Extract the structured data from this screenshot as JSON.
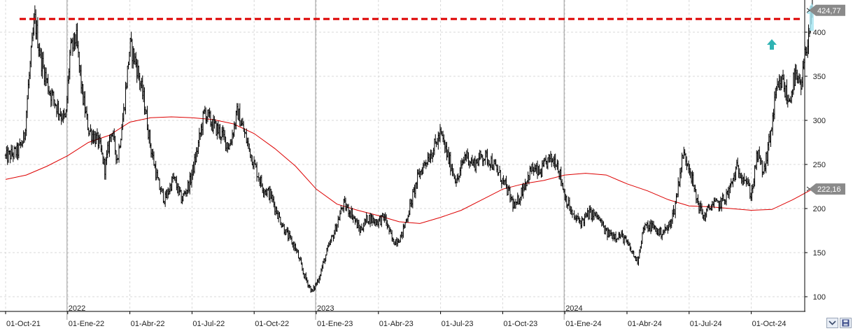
{
  "chart_data": {
    "type": "ohlc",
    "x_tick_labels": [
      "01-Oct-21",
      "01-Ene-22",
      "01-Abr-22",
      "01-Jul-22",
      "01-Oct-22",
      "01-Ene-23",
      "01-Abr-23",
      "01-Jul-23",
      "01-Oct-23",
      "01-Ene-24",
      "01-Abr-24",
      "01-Jul-24",
      "01-Oct-24"
    ],
    "x_tick_months": [
      0,
      3,
      6,
      9,
      12,
      15,
      18,
      21,
      24,
      27,
      30,
      33,
      36
    ],
    "year_labels": [
      {
        "text": "2022",
        "month": 3
      },
      {
        "text": "2023",
        "month": 15
      },
      {
        "text": "2024",
        "month": 27
      }
    ],
    "y_ticks": [
      100,
      150,
      200,
      250,
      300,
      350,
      400
    ],
    "ylim": [
      90,
      434
    ],
    "xlim_months": [
      0,
      39.1
    ],
    "price_path": [
      [
        0,
        258
      ],
      [
        0.6,
        265
      ],
      [
        0.9,
        280
      ],
      [
        1.1,
        340
      ],
      [
        1.4,
        415
      ],
      [
        1.7,
        370
      ],
      [
        2.1,
        335
      ],
      [
        2.6,
        310
      ],
      [
        2.9,
        300
      ],
      [
        3.1,
        375
      ],
      [
        3.4,
        395
      ],
      [
        3.7,
        330
      ],
      [
        4.0,
        290
      ],
      [
        4.5,
        275
      ],
      [
        4.8,
        245
      ],
      [
        5.1,
        290
      ],
      [
        5.4,
        255
      ],
      [
        5.7,
        310
      ],
      [
        6.0,
        385
      ],
      [
        6.3,
        365
      ],
      [
        6.7,
        320
      ],
      [
        7.0,
        270
      ],
      [
        7.4,
        225
      ],
      [
        7.7,
        210
      ],
      [
        8.1,
        235
      ],
      [
        8.5,
        210
      ],
      [
        8.9,
        230
      ],
      [
        9.2,
        260
      ],
      [
        9.6,
        310
      ],
      [
        10.0,
        295
      ],
      [
        10.4,
        285
      ],
      [
        10.8,
        270
      ],
      [
        11.2,
        310
      ],
      [
        11.6,
        280
      ],
      [
        12.0,
        250
      ],
      [
        12.4,
        225
      ],
      [
        12.8,
        215
      ],
      [
        13.2,
        190
      ],
      [
        13.6,
        170
      ],
      [
        14.0,
        155
      ],
      [
        14.4,
        125
      ],
      [
        14.8,
        105
      ],
      [
        15.1,
        120
      ],
      [
        15.5,
        150
      ],
      [
        15.9,
        175
      ],
      [
        16.3,
        205
      ],
      [
        16.7,
        195
      ],
      [
        17.1,
        175
      ],
      [
        17.5,
        190
      ],
      [
        17.9,
        185
      ],
      [
        18.3,
        190
      ],
      [
        18.7,
        162
      ],
      [
        19.1,
        168
      ],
      [
        19.5,
        200
      ],
      [
        19.9,
        235
      ],
      [
        20.3,
        255
      ],
      [
        20.6,
        265
      ],
      [
        21.0,
        285
      ],
      [
        21.4,
        255
      ],
      [
        21.8,
        230
      ],
      [
        22.2,
        262
      ],
      [
        22.6,
        250
      ],
      [
        23.0,
        260
      ],
      [
        23.4,
        255
      ],
      [
        23.8,
        240
      ],
      [
        24.2,
        222
      ],
      [
        24.6,
        200
      ],
      [
        25.0,
        225
      ],
      [
        25.4,
        245
      ],
      [
        25.8,
        240
      ],
      [
        26.2,
        255
      ],
      [
        26.6,
        255
      ],
      [
        27.0,
        215
      ],
      [
        27.4,
        190
      ],
      [
        27.8,
        185
      ],
      [
        28.2,
        195
      ],
      [
        28.6,
        190
      ],
      [
        29.0,
        172
      ],
      [
        29.4,
        170
      ],
      [
        29.8,
        168
      ],
      [
        30.2,
        152
      ],
      [
        30.5,
        140
      ],
      [
        30.8,
        178
      ],
      [
        31.2,
        180
      ],
      [
        31.6,
        172
      ],
      [
        32.0,
        178
      ],
      [
        32.3,
        200
      ],
      [
        32.7,
        262
      ],
      [
        33.0,
        250
      ],
      [
        33.3,
        215
      ],
      [
        33.7,
        190
      ],
      [
        34.1,
        205
      ],
      [
        34.5,
        205
      ],
      [
        34.9,
        218
      ],
      [
        35.3,
        245
      ],
      [
        35.7,
        235
      ],
      [
        36.0,
        215
      ],
      [
        36.3,
        262
      ],
      [
        36.6,
        240
      ],
      [
        36.9,
        280
      ],
      [
        37.2,
        330
      ],
      [
        37.5,
        345
      ],
      [
        37.8,
        320
      ],
      [
        38.1,
        350
      ],
      [
        38.4,
        335
      ],
      [
        38.6,
        375
      ],
      [
        38.8,
        405
      ],
      [
        38.95,
        425
      ]
    ],
    "moving_average": {
      "color": "#dd0000",
      "points": [
        [
          0,
          233
        ],
        [
          1,
          238
        ],
        [
          2,
          248
        ],
        [
          3,
          260
        ],
        [
          4,
          275
        ],
        [
          5,
          283
        ],
        [
          6,
          298
        ],
        [
          7,
          303
        ],
        [
          8,
          304
        ],
        [
          9,
          303
        ],
        [
          10,
          301
        ],
        [
          11,
          296
        ],
        [
          12,
          285
        ],
        [
          13,
          268
        ],
        [
          14,
          248
        ],
        [
          15,
          222
        ],
        [
          16,
          205
        ],
        [
          17,
          198
        ],
        [
          18,
          192
        ],
        [
          19,
          185
        ],
        [
          20,
          183
        ],
        [
          21,
          190
        ],
        [
          22,
          198
        ],
        [
          23,
          210
        ],
        [
          24,
          222
        ],
        [
          25,
          228
        ],
        [
          26,
          232
        ],
        [
          27,
          238
        ],
        [
          28,
          240
        ],
        [
          29,
          238
        ],
        [
          30,
          228
        ],
        [
          31,
          220
        ],
        [
          32,
          210
        ],
        [
          33,
          203
        ],
        [
          34,
          202
        ],
        [
          35,
          200
        ],
        [
          36,
          198
        ],
        [
          37,
          199
        ],
        [
          38,
          210
        ],
        [
          38.95,
          222
        ]
      ]
    },
    "resistance_level": {
      "value": 415,
      "color": "#dd0000"
    },
    "last_price_label": "424,77",
    "ma_last_label": "222,16",
    "colors": {
      "bars": "#000000",
      "grid": "#d8d8d8",
      "tag_bg": "#8a8a8a",
      "arrow": "#2fb3b3",
      "arrow_light": "#a9e6f2"
    }
  }
}
